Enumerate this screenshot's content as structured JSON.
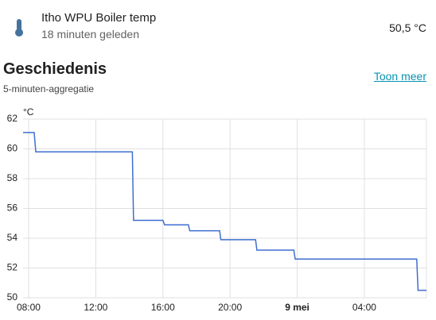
{
  "header": {
    "name": "Itho WPU Boiler temp",
    "time": "18 minuten geleden",
    "state": "50,5 °C"
  },
  "history": {
    "title": "Geschiedenis",
    "subtitle": "5-minuten-aggregatie",
    "link": "Toon meer"
  },
  "chart_data": {
    "type": "line",
    "y_label": "°C",
    "grid": true,
    "xlim": [
      7.67,
      31.7
    ],
    "xticks": [
      {
        "value": 8,
        "label": "08:00"
      },
      {
        "value": 12,
        "label": "12:00"
      },
      {
        "value": 16,
        "label": "16:00"
      },
      {
        "value": 20,
        "label": "20:00"
      },
      {
        "value": 24,
        "label": "9 mei"
      },
      {
        "value": 28,
        "label": "04:00"
      }
    ],
    "ylim": [
      50,
      62
    ],
    "yticks": [
      50,
      52,
      54,
      56,
      58,
      60,
      62
    ],
    "series": [
      {
        "name": "Itho WPU Boiler temp",
        "color": "#3e6fd0",
        "x": [
          7.67,
          8.33,
          8.43,
          14.18,
          14.25,
          16.0,
          16.1,
          17.52,
          17.6,
          19.38,
          19.45,
          21.52,
          21.6,
          23.8,
          23.88,
          31.12,
          31.2,
          31.7
        ],
        "values": [
          61.1,
          61.1,
          59.8,
          59.8,
          55.2,
          55.2,
          54.9,
          54.9,
          54.5,
          54.5,
          53.9,
          53.9,
          53.2,
          53.2,
          52.6,
          52.6,
          50.5,
          50.5
        ]
      }
    ]
  }
}
